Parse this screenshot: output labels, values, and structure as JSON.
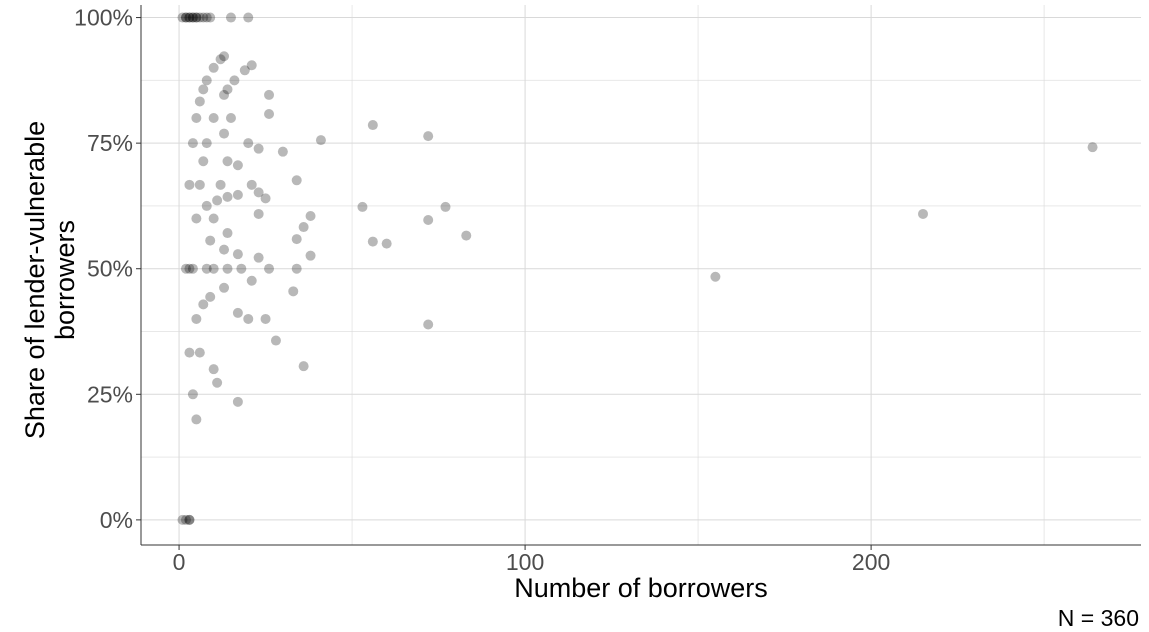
{
  "chart_data": {
    "type": "scatter",
    "title": "",
    "xlabel": "Number of borrowers",
    "ylabel": "Share of lender-vulnerable borrowers",
    "ylabel_lines": [
      "Share of lender-vulnerable",
      "borrowers"
    ],
    "caption": "N = 360",
    "xlim": [
      -11,
      278
    ],
    "ylim": [
      -0.05,
      1.025
    ],
    "x_ticks": [
      0,
      100,
      200
    ],
    "x_tick_labels": [
      "0",
      "100",
      "200"
    ],
    "y_ticks": [
      0,
      0.25,
      0.5,
      0.75,
      1.0
    ],
    "y_tick_labels": [
      "0%",
      "25%",
      "50%",
      "75%",
      "100%"
    ],
    "grid": true,
    "legend": "none",
    "point_color": "#000000",
    "point_alpha": 0.28,
    "points": [
      {
        "x": 1,
        "y": 1.0
      },
      {
        "x": 2,
        "y": 1.0
      },
      {
        "x": 2,
        "y": 1.0
      },
      {
        "x": 3,
        "y": 1.0
      },
      {
        "x": 3,
        "y": 1.0
      },
      {
        "x": 4,
        "y": 1.0
      },
      {
        "x": 4,
        "y": 1.0
      },
      {
        "x": 5,
        "y": 1.0
      },
      {
        "x": 5,
        "y": 1.0
      },
      {
        "x": 6,
        "y": 1.0
      },
      {
        "x": 7,
        "y": 1.0
      },
      {
        "x": 8,
        "y": 1.0
      },
      {
        "x": 9,
        "y": 1.0
      },
      {
        "x": 15,
        "y": 1.0
      },
      {
        "x": 20,
        "y": 1.0
      },
      {
        "x": 1,
        "y": 0.0
      },
      {
        "x": 2,
        "y": 0.0
      },
      {
        "x": 3,
        "y": 0.0
      },
      {
        "x": 3,
        "y": 0.0
      },
      {
        "x": 2,
        "y": 0.5
      },
      {
        "x": 3,
        "y": 0.5
      },
      {
        "x": 4,
        "y": 0.5
      },
      {
        "x": 8,
        "y": 0.5
      },
      {
        "x": 10,
        "y": 0.5
      },
      {
        "x": 14,
        "y": 0.5
      },
      {
        "x": 18,
        "y": 0.5
      },
      {
        "x": 26,
        "y": 0.5
      },
      {
        "x": 34,
        "y": 0.5
      },
      {
        "x": 3,
        "y": 0.667
      },
      {
        "x": 6,
        "y": 0.667
      },
      {
        "x": 12,
        "y": 0.667
      },
      {
        "x": 21,
        "y": 0.667
      },
      {
        "x": 3,
        "y": 0.333
      },
      {
        "x": 6,
        "y": 0.333
      },
      {
        "x": 4,
        "y": 0.75
      },
      {
        "x": 8,
        "y": 0.75
      },
      {
        "x": 20,
        "y": 0.75
      },
      {
        "x": 4,
        "y": 0.25
      },
      {
        "x": 5,
        "y": 0.8
      },
      {
        "x": 10,
        "y": 0.8
      },
      {
        "x": 15,
        "y": 0.8
      },
      {
        "x": 5,
        "y": 0.6
      },
      {
        "x": 5,
        "y": 0.4
      },
      {
        "x": 5,
        "y": 0.2
      },
      {
        "x": 6,
        "y": 0.833
      },
      {
        "x": 7,
        "y": 0.857
      },
      {
        "x": 7,
        "y": 0.714
      },
      {
        "x": 7,
        "y": 0.429
      },
      {
        "x": 8,
        "y": 0.875
      },
      {
        "x": 8,
        "y": 0.625
      },
      {
        "x": 9,
        "y": 0.556
      },
      {
        "x": 9,
        "y": 0.444
      },
      {
        "x": 10,
        "y": 0.9
      },
      {
        "x": 10,
        "y": 0.6
      },
      {
        "x": 10,
        "y": 0.3
      },
      {
        "x": 11,
        "y": 0.636
      },
      {
        "x": 11,
        "y": 0.273
      },
      {
        "x": 12,
        "y": 0.917
      },
      {
        "x": 13,
        "y": 0.923
      },
      {
        "x": 13,
        "y": 0.846
      },
      {
        "x": 13,
        "y": 0.769
      },
      {
        "x": 13,
        "y": 0.538
      },
      {
        "x": 13,
        "y": 0.462
      },
      {
        "x": 14,
        "y": 0.857
      },
      {
        "x": 14,
        "y": 0.714
      },
      {
        "x": 14,
        "y": 0.643
      },
      {
        "x": 14,
        "y": 0.571
      },
      {
        "x": 16,
        "y": 0.875
      },
      {
        "x": 17,
        "y": 0.706
      },
      {
        "x": 17,
        "y": 0.647
      },
      {
        "x": 17,
        "y": 0.529
      },
      {
        "x": 17,
        "y": 0.412
      },
      {
        "x": 17,
        "y": 0.235
      },
      {
        "x": 19,
        "y": 0.895
      },
      {
        "x": 20,
        "y": 0.4
      },
      {
        "x": 21,
        "y": 0.905
      },
      {
        "x": 21,
        "y": 0.476
      },
      {
        "x": 23,
        "y": 0.739
      },
      {
        "x": 23,
        "y": 0.652
      },
      {
        "x": 23,
        "y": 0.609
      },
      {
        "x": 23,
        "y": 0.522
      },
      {
        "x": 25,
        "y": 0.64
      },
      {
        "x": 25,
        "y": 0.4
      },
      {
        "x": 26,
        "y": 0.846
      },
      {
        "x": 26,
        "y": 0.808
      },
      {
        "x": 28,
        "y": 0.357
      },
      {
        "x": 30,
        "y": 0.733
      },
      {
        "x": 33,
        "y": 0.455
      },
      {
        "x": 34,
        "y": 0.676
      },
      {
        "x": 34,
        "y": 0.559
      },
      {
        "x": 36,
        "y": 0.583
      },
      {
        "x": 36,
        "y": 0.306
      },
      {
        "x": 38,
        "y": 0.605
      },
      {
        "x": 38,
        "y": 0.526
      },
      {
        "x": 41,
        "y": 0.756
      },
      {
        "x": 53,
        "y": 0.623
      },
      {
        "x": 56,
        "y": 0.786
      },
      {
        "x": 56,
        "y": 0.554
      },
      {
        "x": 60,
        "y": 0.55
      },
      {
        "x": 72,
        "y": 0.764
      },
      {
        "x": 72,
        "y": 0.597
      },
      {
        "x": 72,
        "y": 0.389
      },
      {
        "x": 77,
        "y": 0.623
      },
      {
        "x": 83,
        "y": 0.566
      },
      {
        "x": 155,
        "y": 0.484
      },
      {
        "x": 215,
        "y": 0.609
      },
      {
        "x": 264,
        "y": 0.742
      }
    ]
  }
}
